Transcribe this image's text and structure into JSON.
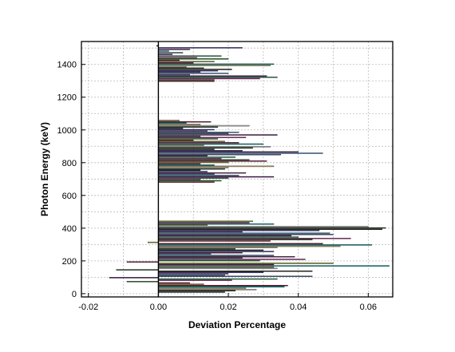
{
  "chart_data": {
    "type": "bar",
    "orientation": "horizontal",
    "xlabel": "Deviation Percentage",
    "ylabel": "Photon Energy (keV)",
    "xlim": [
      -0.022,
      0.067
    ],
    "ylim": [
      -20,
      1540
    ],
    "xticks": [
      -0.02,
      0.0,
      0.02,
      0.04,
      0.06
    ],
    "xtick_labels": [
      "-0.02",
      "0.00",
      "0.02",
      "0.04",
      "0.06"
    ],
    "yticks": [
      0,
      200,
      400,
      600,
      800,
      1000,
      1200,
      1400
    ],
    "ytick_labels": [
      "0",
      "200",
      "400",
      "600",
      "800",
      "1000",
      "1200",
      "1400"
    ],
    "grid": true,
    "legend": "none",
    "bar_thickness_kev": 8,
    "palette": [
      "#1a1a1a",
      "#7a1040",
      "#2e8b57",
      "#3a3aa0",
      "#00a0a0",
      "#b0308a",
      "#6a2a6a",
      "#d4b26a",
      "#2a7a2a",
      "#4c8fc8",
      "#c8c8c8",
      "#8a1a3a",
      "#4a6a9a",
      "#2a4a2a",
      "#9a9a30",
      "#5a1a6a"
    ],
    "series": [
      {
        "name": "",
        "energy_kev": [
          1512,
          1500,
          1490,
          1480,
          1470,
          1460,
          1450,
          1440,
          1432,
          1424,
          1416,
          1408,
          1400,
          1392,
          1384,
          1376,
          1368,
          1360,
          1352,
          1344,
          1336,
          1328,
          1320,
          1312,
          1304,
          1296
        ],
        "deviation": [
          -0.0005,
          0.024,
          0.009,
          0.003,
          0.007,
          0.004,
          0.018,
          0.011,
          0.02,
          0.006,
          0.016,
          0.01,
          0.033,
          0.032,
          0.008,
          0.013,
          0.021,
          0.017,
          0.012,
          0.02,
          0.009,
          0.031,
          0.034,
          0.029,
          0.016,
          0.016
        ]
      },
      {
        "name": "",
        "energy_kev": [
          1056,
          1048,
          1040,
          1032,
          1024,
          1016,
          1008,
          1000,
          992,
          984,
          976,
          968,
          960,
          952,
          944,
          936,
          928,
          920,
          912,
          904,
          896,
          888,
          880,
          872,
          864,
          856,
          848,
          840,
          832,
          824,
          816,
          808,
          800,
          792,
          784,
          776,
          768,
          760,
          752,
          744,
          736,
          728,
          720,
          712,
          704,
          696,
          688,
          680
        ],
        "deviation": [
          0.006,
          0.015,
          0.008,
          0.012,
          0.026,
          0.017,
          0.007,
          0.016,
          0.014,
          0.023,
          0.02,
          0.034,
          0.012,
          0.025,
          0.017,
          0.01,
          0.019,
          0.023,
          0.03,
          0.013,
          0.032,
          0.027,
          0.016,
          0.024,
          0.04,
          0.047,
          0.035,
          0.014,
          0.022,
          0.018,
          0.026,
          0.031,
          0.02,
          0.012,
          0.016,
          0.033,
          0.02,
          0.019,
          0.012,
          0.014,
          0.025,
          0.016,
          0.023,
          0.033,
          0.02,
          0.012,
          0.018,
          0.016
        ]
      },
      {
        "name": "",
        "energy_kev": [
          440,
          432,
          424,
          416,
          408,
          400,
          392,
          384,
          376,
          368,
          360,
          352,
          344,
          336,
          328,
          320,
          312,
          304,
          296,
          288,
          280,
          272,
          264,
          256,
          248,
          240,
          232,
          224,
          216,
          208,
          200,
          192,
          184,
          176,
          168,
          160,
          152,
          144,
          136,
          128,
          120,
          112,
          104,
          96,
          88,
          80,
          72,
          64,
          56,
          48,
          40,
          32,
          24,
          16,
          8
        ],
        "deviation": [
          0.027,
          0.026,
          0.033,
          0.014,
          0.06,
          0.065,
          0.064,
          0.046,
          0.024,
          0.049,
          0.05,
          0.038,
          0.04,
          0.055,
          0.044,
          0.032,
          -0.003,
          0.047,
          0.061,
          0.052,
          0.034,
          0.022,
          0.03,
          0.033,
          0.024,
          0.015,
          0.033,
          0.039,
          0.024,
          0.042,
          0.029,
          -0.009,
          0.05,
          0.033,
          0.066,
          0.033,
          0.034,
          -0.012,
          0.044,
          0.03,
          0.02,
          0.019,
          0.044,
          -0.014,
          0.034,
          0.021,
          -0.009,
          0.009,
          0.013,
          0.037,
          0.036,
          0.025,
          0.028,
          0.022,
          0.019
        ]
      }
    ]
  }
}
